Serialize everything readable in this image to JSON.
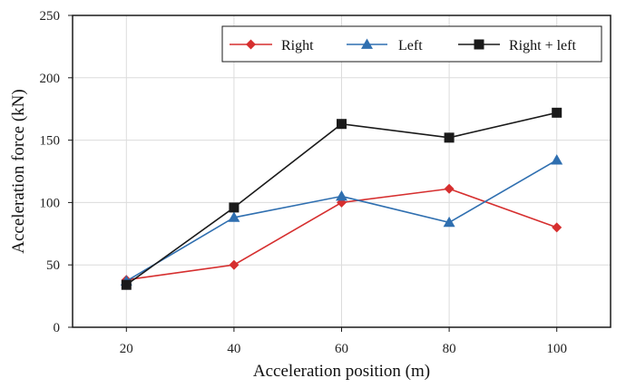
{
  "chart_data": {
    "type": "line",
    "title": "",
    "xlabel": "Acceleration position (m)",
    "ylabel": "Acceleration force (kN)",
    "x": [
      20,
      40,
      60,
      80,
      100
    ],
    "xlim": [
      10,
      110
    ],
    "ylim": [
      0,
      250
    ],
    "x_ticks": [
      "20",
      "40",
      "60",
      "80",
      "100"
    ],
    "y_ticks": [
      "0",
      "50",
      "100",
      "150",
      "200",
      "250"
    ],
    "grid": true,
    "legend_position": "top-right",
    "series": [
      {
        "name": "Right",
        "color": "#d62f2f",
        "marker": "diamond",
        "values": [
          38,
          50,
          100,
          111,
          80
        ]
      },
      {
        "name": "Left",
        "color": "#2f6fb0",
        "marker": "triangle",
        "values": [
          37,
          88,
          105,
          84,
          134
        ]
      },
      {
        "name": "Right + left",
        "color": "#1a1a1a",
        "marker": "square",
        "values": [
          34,
          96,
          163,
          152,
          172
        ]
      }
    ]
  }
}
